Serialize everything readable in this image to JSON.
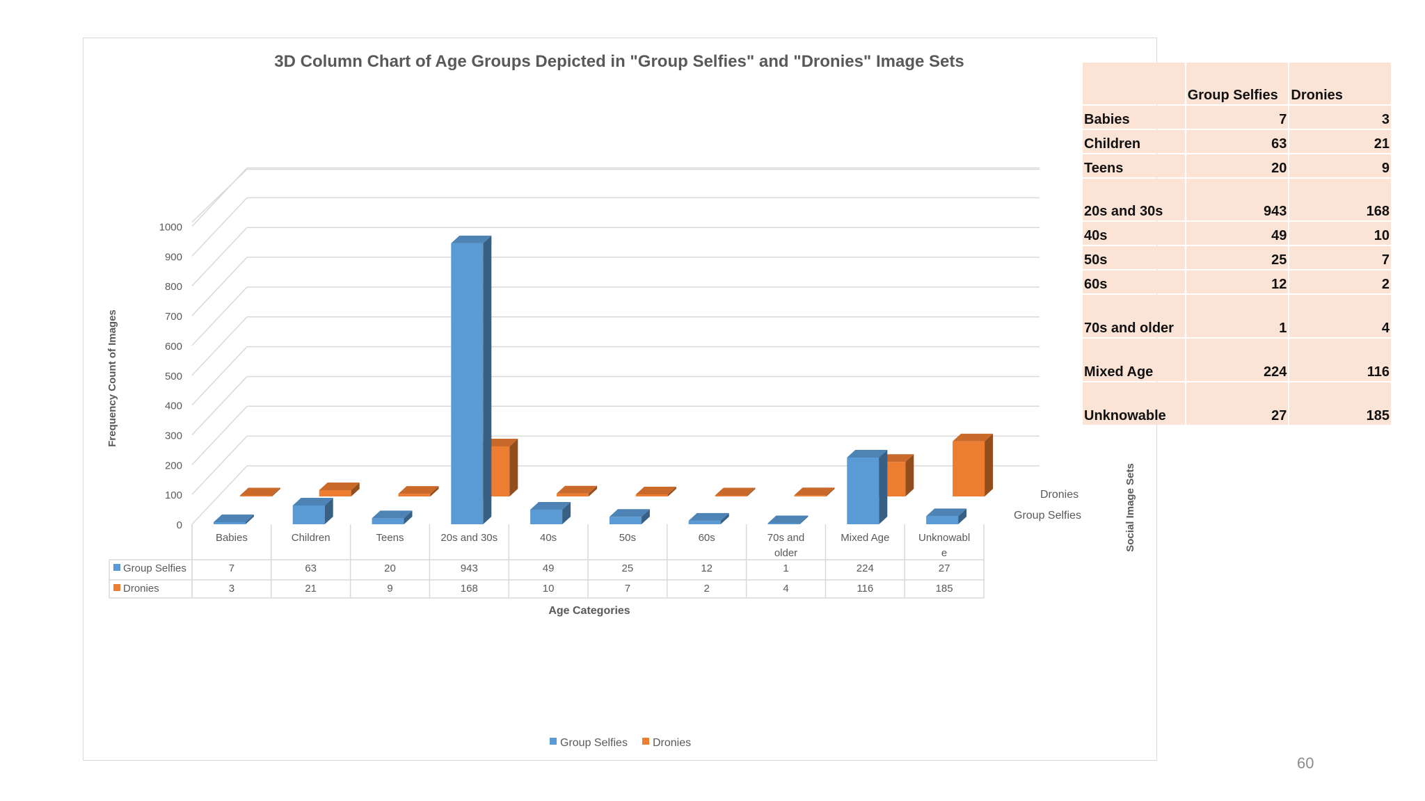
{
  "chart_data": {
    "type": "bar",
    "variant": "3d-column",
    "title": "3D Column Chart of Age Groups Depicted in \"Group Selfies\" and \"Dronies\" Image Sets",
    "xlabel": "Age Categories",
    "ylabel": "Frequency Count of Images",
    "zlabel": "Social Image Sets",
    "categories": [
      "Babies",
      "Children",
      "Teens",
      "20s and 30s",
      "40s",
      "50s",
      "60s",
      "70s and older",
      "Mixed Age",
      "Unknowable"
    ],
    "category_display": [
      [
        "Babies"
      ],
      [
        "Children"
      ],
      [
        "Teens"
      ],
      [
        "20s and 30s"
      ],
      [
        "40s"
      ],
      [
        "50s"
      ],
      [
        "60s"
      ],
      [
        "70s and",
        "older"
      ],
      [
        "Mixed Age"
      ],
      [
        "Unknowabl",
        "e"
      ]
    ],
    "series": [
      {
        "name": "Group Selfies",
        "color": "#5b9bd5",
        "values": [
          7,
          63,
          20,
          943,
          49,
          25,
          12,
          1,
          224,
          27
        ]
      },
      {
        "name": "Dronies",
        "color": "#ed7d31",
        "values": [
          3,
          21,
          9,
          168,
          10,
          7,
          2,
          4,
          116,
          185
        ]
      }
    ],
    "ylim": [
      0,
      1000
    ],
    "yticks": [
      0,
      100,
      200,
      300,
      400,
      500,
      600,
      700,
      800,
      900,
      1000
    ],
    "grid": true,
    "legend": "bottom",
    "data_table": true
  },
  "table": {
    "headers": [
      "",
      "Group Selfies",
      "Dronies"
    ],
    "rows": [
      {
        "label": "Babies",
        "group_selfies": "7",
        "dronies": "3"
      },
      {
        "label": "Children",
        "group_selfies": "63",
        "dronies": "21"
      },
      {
        "label": "Teens",
        "group_selfies": "20",
        "dronies": "9"
      },
      {
        "label": "20s and 30s",
        "group_selfies": "943",
        "dronies": "168"
      },
      {
        "label": "40s",
        "group_selfies": "49",
        "dronies": "10"
      },
      {
        "label": "50s",
        "group_selfies": "25",
        "dronies": "7"
      },
      {
        "label": "60s",
        "group_selfies": "12",
        "dronies": "2"
      },
      {
        "label": "70s and older",
        "group_selfies": "1",
        "dronies": "4"
      },
      {
        "label": "Mixed Age",
        "group_selfies": "224",
        "dronies": "116"
      },
      {
        "label": "Unknowable",
        "group_selfies": "27",
        "dronies": "185"
      }
    ]
  },
  "page_number": "60"
}
